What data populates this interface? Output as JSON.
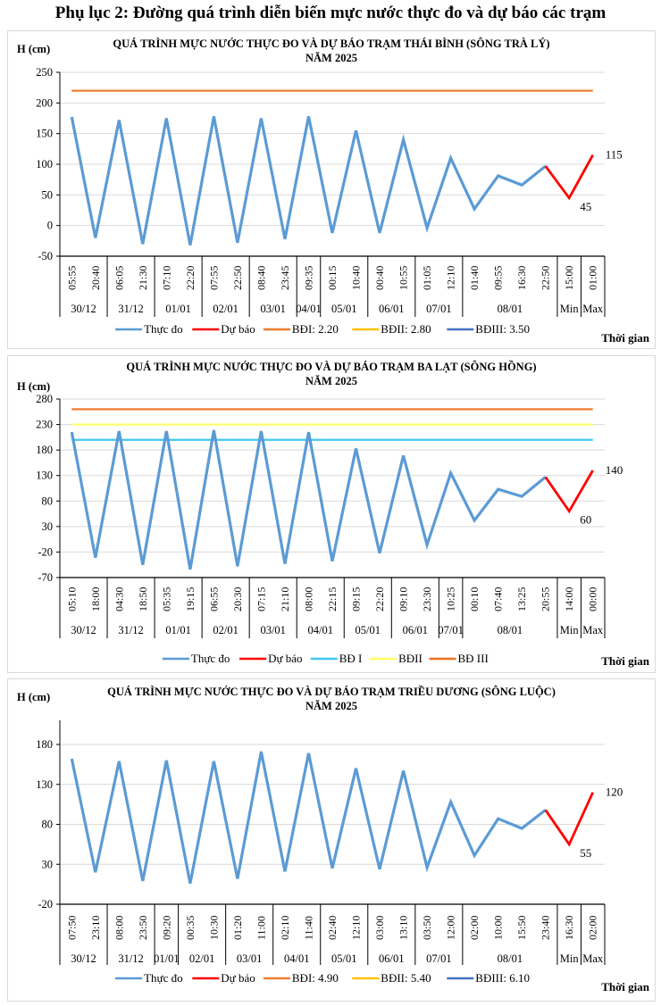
{
  "page_title": "Phụ lục 2: Đường quá trình diễn biến mực nước thực đo và dự báo các trạm",
  "chart_data": [
    {
      "type": "line",
      "title": "QUÁ TRÌNH MỰC NƯỚC THỰC ĐO VÀ DỰ BÁO TRẠM THÁI BÌNH (SÔNG TRÀ LÝ)",
      "subtitle": "NĂM 2025",
      "ylabel": "H (cm)",
      "xlabel": "Thời gian",
      "ylim": [
        -50,
        250
      ],
      "yticks": [
        250,
        200,
        150,
        100,
        50,
        0,
        -50
      ],
      "grid": true,
      "x": [
        "05:55",
        "20:40",
        "06:05",
        "21:30",
        "07:10",
        "22:20",
        "07:55",
        "22:50",
        "08:40",
        "23:45",
        "09:35",
        "00:15",
        "10:40",
        "00:40",
        "10:55",
        "01:05",
        "12:10",
        "01:40",
        "09:55",
        "16:30",
        "22:50",
        "15:00",
        "01:00"
      ],
      "groups": [
        {
          "label": "30/12",
          "start": 0,
          "end": 1
        },
        {
          "label": "31/12",
          "start": 2,
          "end": 3
        },
        {
          "label": "01/01",
          "start": 4,
          "end": 5
        },
        {
          "label": "02/01",
          "start": 6,
          "end": 7
        },
        {
          "label": "03/01",
          "start": 8,
          "end": 9
        },
        {
          "label": "04/01",
          "start": 10,
          "end": 10
        },
        {
          "label": "05/01",
          "start": 11,
          "end": 12
        },
        {
          "label": "06/01",
          "start": 13,
          "end": 14
        },
        {
          "label": "07/01",
          "start": 15,
          "end": 16
        },
        {
          "label": "08/01",
          "start": 17,
          "end": 20
        },
        {
          "label": "Min",
          "start": 21,
          "end": 21
        },
        {
          "label": "Max",
          "start": 22,
          "end": 22
        }
      ],
      "series": [
        {
          "name": "Thực đo",
          "color": "#5b9bd5",
          "start": 0,
          "values": [
            177,
            -20,
            172,
            -30,
            175,
            -32,
            178,
            -28,
            175,
            -22,
            178,
            -12,
            155,
            -12,
            140,
            -4,
            110,
            27,
            81,
            66,
            97
          ]
        },
        {
          "name": "Dự báo",
          "color": "#ff0000",
          "start": 20,
          "values": [
            97,
            45,
            115
          ]
        }
      ],
      "thresholds": [
        {
          "name": "BĐI: 2.20",
          "color": "#ed7d31",
          "value": 220,
          "drawn": true
        },
        {
          "name": "BĐII: 2.80",
          "color": "#ffc000",
          "value": 280,
          "drawn": false
        },
        {
          "name": "BĐIII: 3.50",
          "color": "#4472c4",
          "value": 350,
          "drawn": false
        }
      ],
      "data_labels": [
        {
          "index": 21,
          "text": "45"
        },
        {
          "index": 22,
          "text": "115"
        }
      ]
    },
    {
      "type": "line",
      "title": "QUÁ TRÌNH MỰC NƯỚC THỰC ĐO VÀ DỰ BÁO TRẠM BA LẠT (SÔNG HỒNG)",
      "subtitle": "NĂM 2025",
      "ylabel": "H (cm)",
      "xlabel": "Thời gian",
      "ylim": [
        -70,
        280
      ],
      "yticks": [
        280,
        230,
        180,
        130,
        80,
        30,
        -20,
        -70
      ],
      "grid": true,
      "x": [
        "05:10",
        "18:00",
        "04:30",
        "18:50",
        "05:35",
        "19:15",
        "06:55",
        "20:30",
        "07:15",
        "21:10",
        "08:00",
        "22:15",
        "09:15",
        "22:20",
        "09:10",
        "23:30",
        "10:25",
        "00:10",
        "07:40",
        "13:25",
        "20:55",
        "14:00",
        "00:00"
      ],
      "groups": [
        {
          "label": "30/12",
          "start": 0,
          "end": 1
        },
        {
          "label": "31/12",
          "start": 2,
          "end": 3
        },
        {
          "label": "01/01",
          "start": 4,
          "end": 5
        },
        {
          "label": "02/01",
          "start": 6,
          "end": 7
        },
        {
          "label": "03/01",
          "start": 8,
          "end": 9
        },
        {
          "label": "04/01",
          "start": 10,
          "end": 11
        },
        {
          "label": "05/01",
          "start": 12,
          "end": 13
        },
        {
          "label": "06/01",
          "start": 14,
          "end": 15
        },
        {
          "label": "07/01",
          "start": 16,
          "end": 16
        },
        {
          "label": "08/01",
          "start": 17,
          "end": 20
        },
        {
          "label": "Min",
          "start": 21,
          "end": 21
        },
        {
          "label": "Max",
          "start": 22,
          "end": 22
        }
      ],
      "series": [
        {
          "name": "Thực đo",
          "color": "#5b9bd5",
          "start": 0,
          "values": [
            215,
            -31,
            217,
            -45,
            217,
            -54,
            219,
            -48,
            217,
            -43,
            215,
            -38,
            183,
            -22,
            169,
            -6,
            135,
            42,
            103,
            89,
            127
          ]
        },
        {
          "name": "Dự báo",
          "color": "#ff0000",
          "start": 20,
          "values": [
            127,
            60,
            140
          ]
        }
      ],
      "thresholds": [
        {
          "name": "BĐ I",
          "color": "#3cc8f0",
          "value": 200,
          "drawn": true
        },
        {
          "name": "BĐII",
          "color": "#ffff66",
          "value": 230,
          "drawn": true
        },
        {
          "name": "BĐ III",
          "color": "#f07020",
          "value": 260,
          "drawn": true
        }
      ],
      "data_labels": [
        {
          "index": 21,
          "text": "60"
        },
        {
          "index": 22,
          "text": "140"
        }
      ]
    },
    {
      "type": "line",
      "title": "QUÁ TRÌNH MỰC NƯỚC THỰC ĐO VÀ DỰ BÁO TRẠM TRIỀU DƯƠNG (SÔNG LUỘC)",
      "subtitle": "NĂM 2025",
      "ylabel": "H (cm)",
      "xlabel": "Thời gian",
      "ylim": [
        -20,
        210
      ],
      "yticks": [
        180,
        130,
        80,
        30,
        -20
      ],
      "grid": true,
      "x": [
        "07:50",
        "23:10",
        "08:00",
        "23:50",
        "09:20",
        "00:35",
        "10:30",
        "01:20",
        "11:00",
        "02:10",
        "11:40",
        "02:40",
        "12:10",
        "03:00",
        "13:10",
        "03:50",
        "12:00",
        "02:00",
        "10:00",
        "15:50",
        "23:40",
        "16:30",
        "02:00"
      ],
      "groups": [
        {
          "label": "30/12",
          "start": 0,
          "end": 1
        },
        {
          "label": "31/12",
          "start": 2,
          "end": 3
        },
        {
          "label": "01/01",
          "start": 4,
          "end": 4
        },
        {
          "label": "02/01",
          "start": 5,
          "end": 6
        },
        {
          "label": "03/01",
          "start": 7,
          "end": 8
        },
        {
          "label": "04/01",
          "start": 9,
          "end": 10
        },
        {
          "label": "05/01",
          "start": 11,
          "end": 12
        },
        {
          "label": "06/01",
          "start": 13,
          "end": 14
        },
        {
          "label": "07/01",
          "start": 15,
          "end": 16
        },
        {
          "label": "08/01",
          "start": 17,
          "end": 20
        },
        {
          "label": "Min",
          "start": 21,
          "end": 21
        },
        {
          "label": "Max",
          "start": 22,
          "end": 22
        }
      ],
      "series": [
        {
          "name": "Thực đo",
          "color": "#5b9bd5",
          "start": 0,
          "values": [
            162,
            20,
            159,
            9,
            160,
            6,
            159,
            12,
            171,
            21,
            169,
            25,
            150,
            24,
            147,
            26,
            108,
            41,
            87,
            75,
            98
          ]
        },
        {
          "name": "Dự báo",
          "color": "#ff0000",
          "start": 20,
          "values": [
            98,
            55,
            120
          ]
        }
      ],
      "thresholds": [
        {
          "name": "BĐI: 4.90",
          "color": "#ed7d31",
          "value": 490,
          "drawn": false
        },
        {
          "name": "BĐII: 5.40",
          "color": "#ffc000",
          "value": 540,
          "drawn": false
        },
        {
          "name": "BĐIII: 6.10",
          "color": "#4472c4",
          "value": 610,
          "drawn": false
        }
      ],
      "data_labels": [
        {
          "index": 21,
          "text": "55"
        },
        {
          "index": 22,
          "text": "120"
        }
      ]
    }
  ]
}
